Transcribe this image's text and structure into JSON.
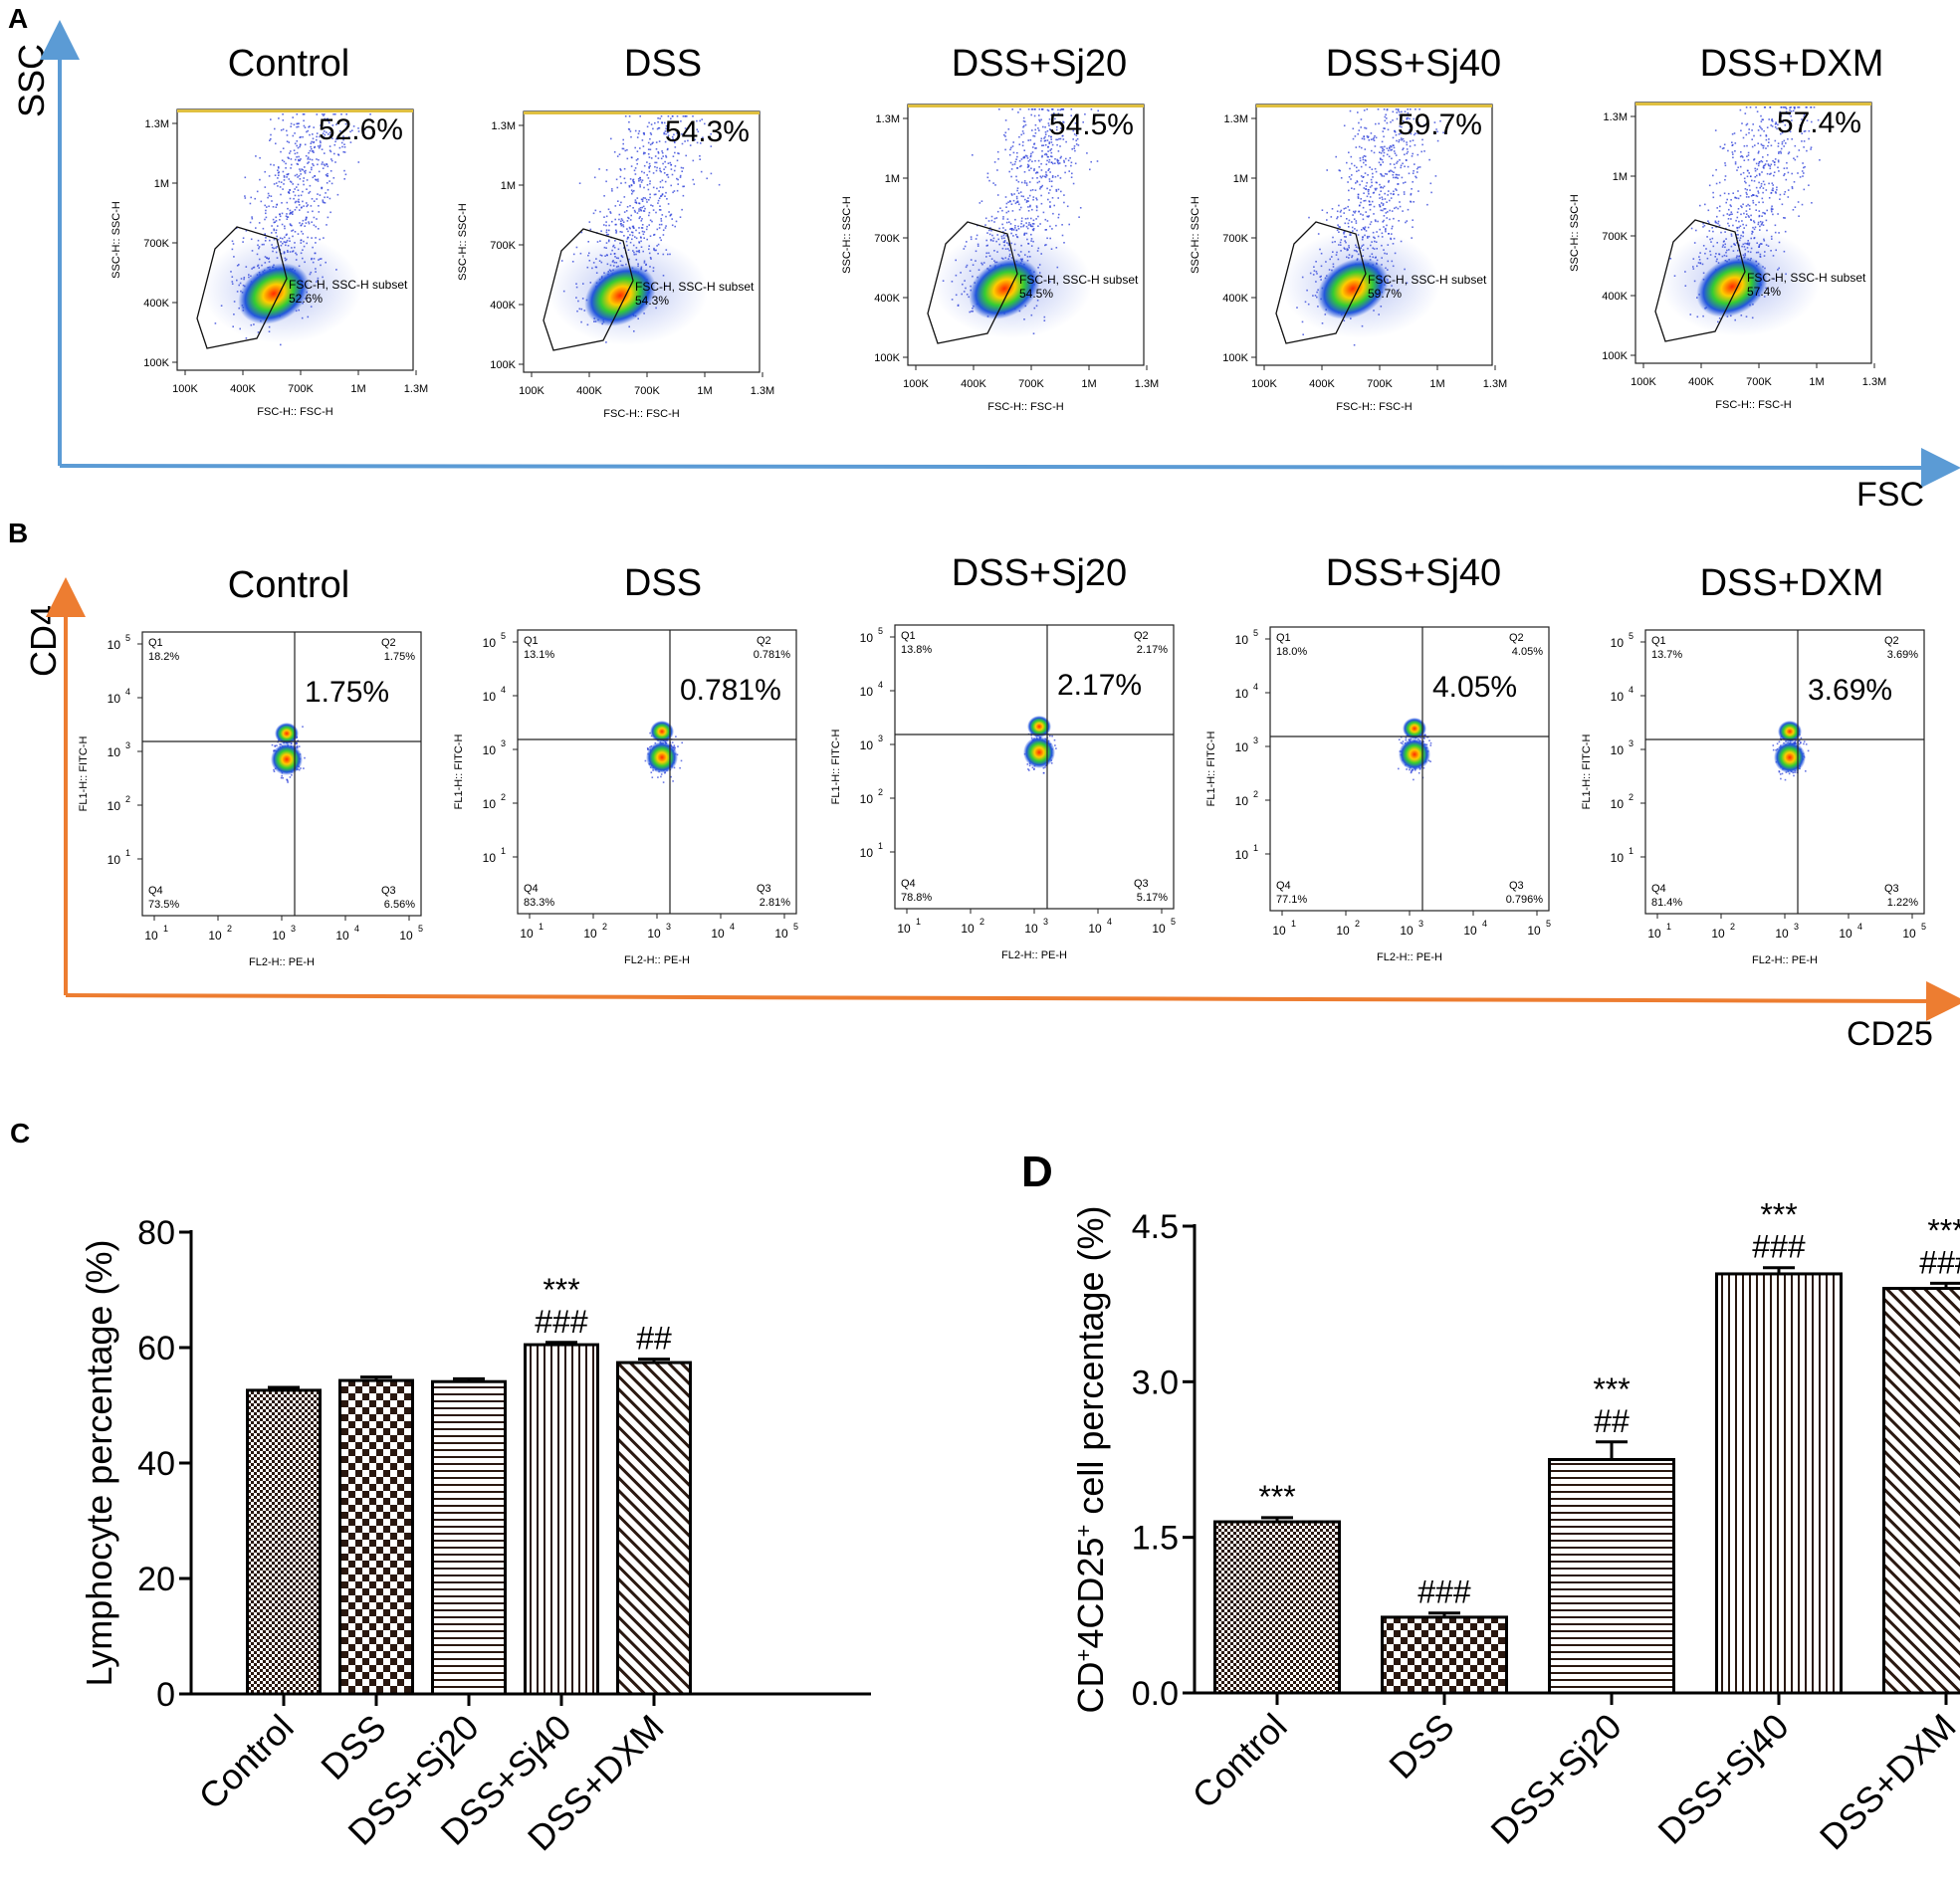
{
  "figure": {
    "panels": {
      "a": {
        "label": "A",
        "y_axis": "SSC",
        "x_axis": "FSC",
        "plot_y_label": "SSC-H:: SSC-H",
        "plot_x_label": "FSC-H:: FSC-H",
        "gate_name": "FSC-H, SSC-H subset",
        "y_ticks": [
          "1.3M",
          "1M",
          "700K",
          "400K",
          "100K"
        ],
        "x_ticks": [
          "100K",
          "400K",
          "700K",
          "1M",
          "1.3M"
        ],
        "groups": [
          {
            "title": "Control",
            "percent": "52.6%"
          },
          {
            "title": "DSS",
            "percent": "54.3%"
          },
          {
            "title": "DSS+Sj20",
            "percent": "54.5%"
          },
          {
            "title": "DSS+Sj40",
            "percent": "59.7%"
          },
          {
            "title": "DSS+DXM",
            "percent": "57.4%"
          }
        ]
      },
      "b": {
        "label": "B",
        "y_axis": "CD4",
        "x_axis": "CD25",
        "plot_y_label": "FL1-H:: FITC-H",
        "plot_x_label": "FL2-H:: PE-H",
        "log_ticks": [
          "10",
          "10",
          "10",
          "10",
          "10"
        ],
        "log_exponents": [
          "1",
          "2",
          "3",
          "4",
          "5"
        ],
        "quadrant_names": [
          "Q1",
          "Q2",
          "Q3",
          "Q4"
        ],
        "groups": [
          {
            "title": "Control",
            "big": "1.75%",
            "q1": "18.2%",
            "q2": "1.75%",
            "q3": "6.56%",
            "q4": "73.5%"
          },
          {
            "title": "DSS",
            "big": "0.781%",
            "q1": "13.1%",
            "q2": "0.781%",
            "q3": "2.81%",
            "q4": "83.3%"
          },
          {
            "title": "DSS+Sj20",
            "big": "2.17%",
            "q1": "13.8%",
            "q2": "2.17%",
            "q3": "5.17%",
            "q4": "78.8%"
          },
          {
            "title": "DSS+Sj40",
            "big": "4.05%",
            "q1": "18.0%",
            "q2": "4.05%",
            "q3": "0.796%",
            "q4": "77.1%"
          },
          {
            "title": "DSS+DXM",
            "big": "3.69%",
            "q1": "13.7%",
            "q2": "3.69%",
            "q3": "1.22%",
            "q4": "81.4%"
          }
        ]
      }
    },
    "axis_colors": {
      "a": "#5b9bd5",
      "b": "#ed7d31"
    }
  },
  "chart_data": [
    {
      "type": "bar",
      "panel": "C",
      "title": "",
      "xlabel": "",
      "ylabel": "Lymphocyte percentage (%)",
      "ylim": [
        0,
        80
      ],
      "yticks": [
        "0",
        "20",
        "40",
        "60",
        "80"
      ],
      "categories": [
        "Control",
        "DSS",
        "DSS+Sj20",
        "DSS+Sj40",
        "DSS+DXM"
      ],
      "values": [
        52.6,
        54.3,
        54.1,
        60.5,
        57.4
      ],
      "errors": [
        0.5,
        0.6,
        0.5,
        0.4,
        0.6
      ],
      "patterns": [
        "fine-check",
        "check",
        "hlines",
        "vlines",
        "diag"
      ],
      "annotations": [
        {
          "category": "DSS+Sj40",
          "lines": [
            "***",
            "###"
          ]
        },
        {
          "category": "DSS+DXM",
          "lines": [
            "##"
          ]
        }
      ]
    },
    {
      "type": "bar",
      "panel": "D",
      "title": "",
      "xlabel": "",
      "ylabel_parts": [
        "CD",
        "+",
        "4CD25",
        "+",
        " cell percentage (%)"
      ],
      "ylim": [
        0,
        4.5
      ],
      "yticks": [
        "0.0",
        "1.5",
        "3.0",
        "4.5"
      ],
      "categories": [
        "Control",
        "DSS",
        "DSS+Sj20",
        "DSS+Sj40",
        "DSS+DXM"
      ],
      "values": [
        1.65,
        0.73,
        2.25,
        4.04,
        3.9
      ],
      "errors": [
        0.04,
        0.04,
        0.17,
        0.06,
        0.05
      ],
      "patterns": [
        "fine-check",
        "check",
        "hlines",
        "vlines",
        "diag"
      ],
      "annotations": [
        {
          "category": "Control",
          "lines": [
            "***"
          ]
        },
        {
          "category": "DSS",
          "lines": [
            "###"
          ]
        },
        {
          "category": "DSS+Sj20",
          "lines": [
            "***",
            "##"
          ]
        },
        {
          "category": "DSS+Sj40",
          "lines": [
            "***",
            "###"
          ]
        },
        {
          "category": "DSS+DXM",
          "lines": [
            "***",
            "###"
          ]
        }
      ]
    }
  ]
}
